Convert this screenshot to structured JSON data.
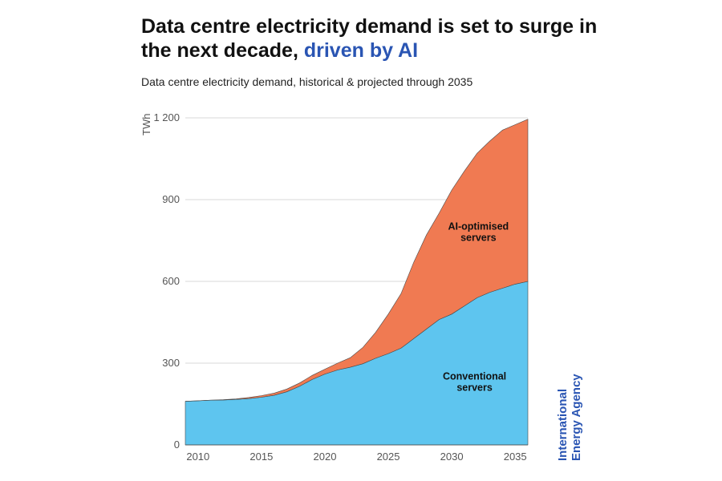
{
  "header": {
    "title_main": "Data centre electricity demand is set to surge in the next decade, ",
    "title_highlight": "driven by AI",
    "subtitle": "Data centre electricity demand, historical & projected through 2035"
  },
  "credit": {
    "line1": "International",
    "line2": "Energy Agency"
  },
  "colors": {
    "conventional": "#5ec5ef",
    "ai": "#f07a52",
    "highlight": "#2a55b3",
    "grid": "#d9d9d9"
  },
  "chart_data": {
    "type": "area",
    "stacked": true,
    "title": "Data centre electricity demand is set to surge in the next decade, driven by AI",
    "subtitle": "Data centre electricity demand, historical & projected through 2035",
    "xlabel": "",
    "ylabel": "TWh",
    "xlim": [
      2009,
      2036
    ],
    "ylim": [
      0,
      1200
    ],
    "x_ticks": [
      2010,
      2015,
      2020,
      2025,
      2030,
      2035
    ],
    "y_ticks": [
      0,
      300,
      600,
      900,
      1200
    ],
    "y_tick_labels": [
      "0",
      "300",
      "600",
      "900",
      "1 200"
    ],
    "grid": "horizontal",
    "x": [
      2009,
      2010,
      2011,
      2012,
      2013,
      2014,
      2015,
      2016,
      2017,
      2018,
      2019,
      2020,
      2021,
      2022,
      2023,
      2024,
      2025,
      2026,
      2027,
      2028,
      2029,
      2030,
      2031,
      2032,
      2033,
      2034,
      2035,
      2036
    ],
    "series": [
      {
        "name": "Conventional servers",
        "values": [
          160,
          162,
          164,
          165,
          167,
          170,
          175,
          182,
          195,
          215,
          240,
          260,
          275,
          285,
          298,
          318,
          335,
          355,
          390,
          425,
          460,
          480,
          510,
          540,
          560,
          575,
          590,
          600
        ]
      },
      {
        "name": "AI-optimised servers",
        "values": [
          0,
          0,
          0,
          1,
          2,
          4,
          6,
          8,
          10,
          12,
          15,
          18,
          25,
          35,
          60,
          95,
          145,
          200,
          280,
          345,
          390,
          455,
          495,
          530,
          555,
          580,
          585,
          595
        ]
      }
    ],
    "annotations": [
      {
        "text": "AI-optimised",
        "x": 2032.1,
        "y": 790
      },
      {
        "text": "servers",
        "x": 2032.1,
        "y": 748
      },
      {
        "text": "Conventional",
        "x": 2031.8,
        "y": 240
      },
      {
        "text": "servers",
        "x": 2031.8,
        "y": 198
      }
    ]
  }
}
